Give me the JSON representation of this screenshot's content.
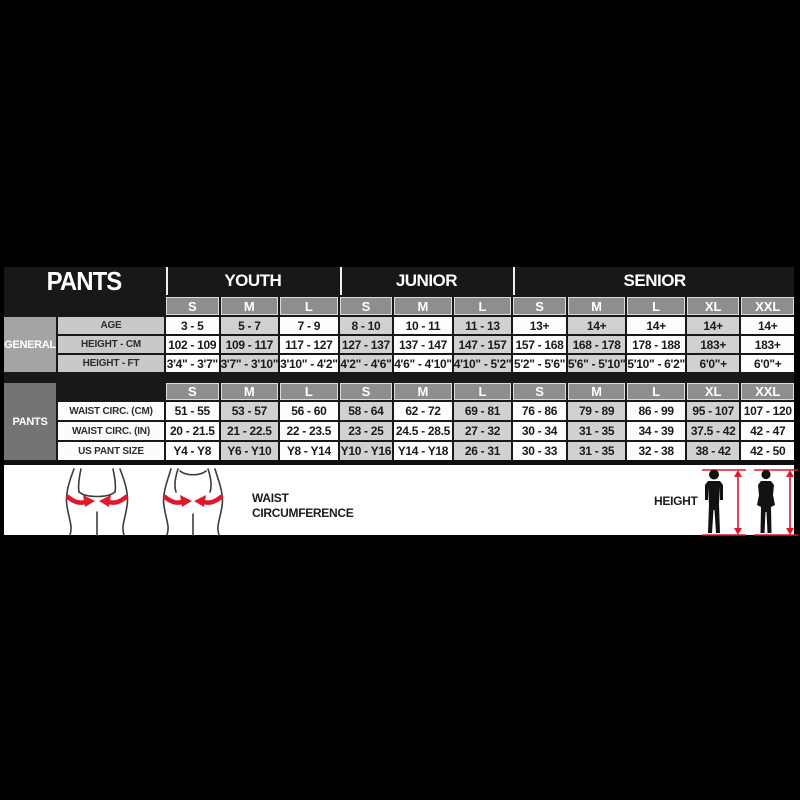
{
  "title": "PANTS",
  "groups": [
    {
      "label": "YOUTH",
      "sizes": [
        "S",
        "M",
        "L"
      ]
    },
    {
      "label": "JUNIOR",
      "sizes": [
        "S",
        "M",
        "L"
      ]
    },
    {
      "label": "SENIOR",
      "sizes": [
        "S",
        "M",
        "L",
        "XL",
        "XXL"
      ]
    }
  ],
  "sections": [
    {
      "label": "GENERAL",
      "rows": [
        {
          "label": "AGE",
          "values": [
            "3 - 5",
            "5 - 7",
            "7 - 9",
            "8 - 10",
            "10 - 11",
            "11 - 13",
            "13+",
            "14+",
            "14+",
            "14+",
            "14+"
          ]
        },
        {
          "label": "HEIGHT - CM",
          "values": [
            "102 - 109",
            "109 - 117",
            "117 - 127",
            "127 - 137",
            "137 - 147",
            "147 - 157",
            "157 - 168",
            "168 - 178",
            "178 - 188",
            "183+",
            "183+"
          ]
        },
        {
          "label": "HEIGHT - FT",
          "values": [
            "3'4\" - 3'7\"",
            "3'7\" - 3'10\"",
            "3'10\" - 4'2\"",
            "4'2\" - 4'6\"",
            "4'6\" - 4'10\"",
            "4'10\" - 5'2\"",
            "5'2\" - 5'6\"",
            "5'6\" - 5'10\"",
            "5'10\" - 6'2\"",
            "6'0\"+",
            "6'0\"+"
          ]
        }
      ]
    },
    {
      "label": "PANTS",
      "rows": [
        {
          "label": "WAIST CIRC. (CM)",
          "values": [
            "51 - 55",
            "53 - 57",
            "56 - 60",
            "58 - 64",
            "62 - 72",
            "69 - 81",
            "76 - 86",
            "79 - 89",
            "86 - 99",
            "95 - 107",
            "107 - 120"
          ]
        },
        {
          "label": "WAIST CIRC. (IN)",
          "values": [
            "20 - 21.5",
            "21 - 22.5",
            "22 - 23.5",
            "23 - 25",
            "24.5 - 28.5",
            "27 - 32",
            "30 - 34",
            "31 - 35",
            "34 - 39",
            "37.5 - 42",
            "42 - 47"
          ]
        },
        {
          "label": "US PANT SIZE",
          "values": [
            "Y4 - Y8",
            "Y6 - Y10",
            "Y8 - Y14",
            "Y10 - Y16",
            "Y14 - Y18",
            "26 - 31",
            "30 - 33",
            "31 - 35",
            "32 - 38",
            "38 - 42",
            "42 - 50"
          ]
        }
      ]
    }
  ],
  "legend": {
    "waist_line1": "WAIST",
    "waist_line2": "CIRCUMFERENCE",
    "height_label": "HEIGHT"
  },
  "colors": {
    "accent_red": "#e0182d",
    "size_header_gray": "#8e8e8e",
    "alt_column_gray": "#d1d1d1",
    "background": "#000000"
  }
}
